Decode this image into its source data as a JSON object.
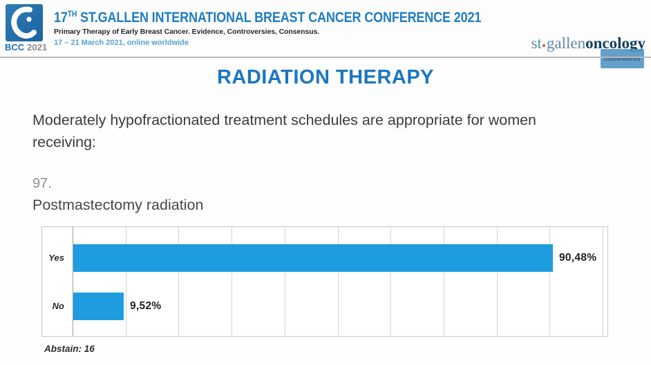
{
  "header": {
    "badge": {
      "bcc": "BCC",
      "year": "2021"
    },
    "title_prefix": "17",
    "title_sup": "TH",
    "title_rest": " ST.GALLEN INTERNATIONAL BREAST CANCER CONFERENCE 2021",
    "subtitle": "Primary Therapy of Early Breast Cancer. Evidence, Controversies, Consensus.",
    "date_line": "17 – 21 March 2021, online worldwide",
    "brand": {
      "st": "st",
      "gallen": "gallen",
      "oncology": "oncology",
      "conferences": "conferences"
    }
  },
  "main": {
    "section_title": "RADIATION THERAPY",
    "question_intro": "Moderately hypofractionated treatment schedules are appropriate for women receiving:",
    "question_number": "97.",
    "question_label": "Postmastectomy radiation",
    "abstain_note": "Abstain: 16"
  },
  "chart_data": {
    "type": "bar",
    "orientation": "horizontal",
    "title": "Postmastectomy radiation",
    "categories": [
      "Yes",
      "No"
    ],
    "values": [
      90.48,
      9.52
    ],
    "value_labels": [
      "90,48%",
      "9,52%"
    ],
    "xlim": [
      0,
      100
    ],
    "grid_interval": 10,
    "grid": true,
    "bar_color": "#1e9ce0",
    "abstain": 16
  },
  "colors": {
    "header_title_blue": "#1f7dc2",
    "date_blue": "#55a3d6",
    "section_title_blue": "#1b76c0",
    "bar_blue": "#1e9ce0",
    "body_text": "#3b3b3b",
    "brand_navy": "#16405e",
    "brand_steel": "#5d8bad",
    "brand_dot_orange": "#d2582a"
  }
}
